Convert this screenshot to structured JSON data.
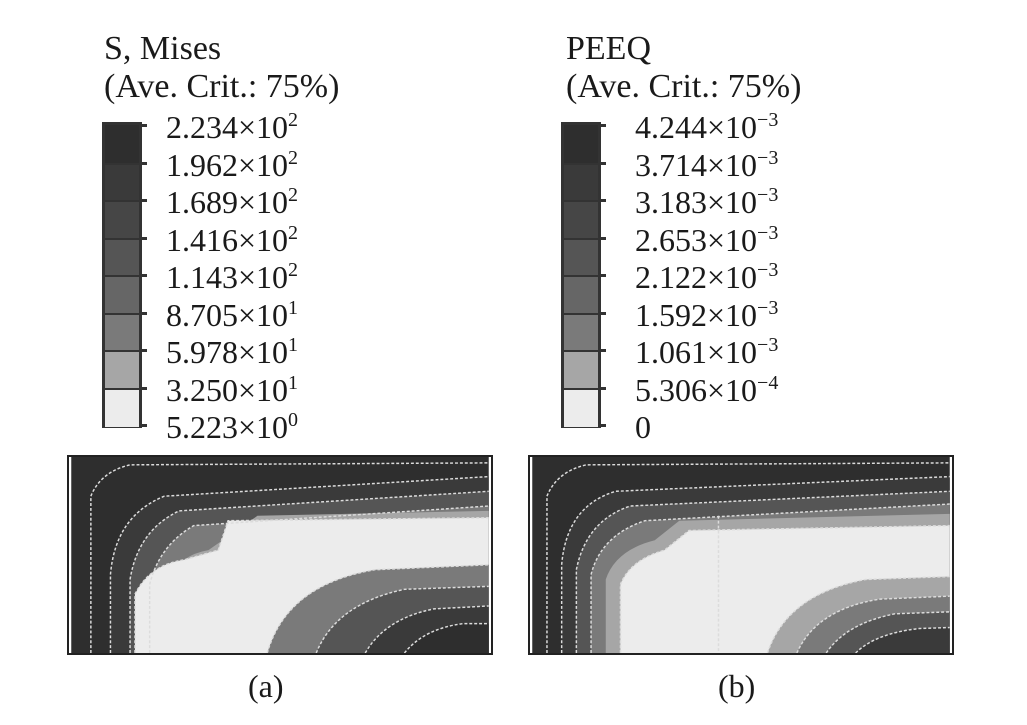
{
  "panels": [
    {
      "title": "S, Mises",
      "criterion": "(Ave. Crit.: 75%)",
      "legend": [
        {
          "mantissa": "2.234",
          "exponent": "2"
        },
        {
          "mantissa": "1.962",
          "exponent": "2"
        },
        {
          "mantissa": "1.689",
          "exponent": "2"
        },
        {
          "mantissa": "1.416",
          "exponent": "2"
        },
        {
          "mantissa": "1.143",
          "exponent": "2"
        },
        {
          "mantissa": "8.705",
          "exponent": "1"
        },
        {
          "mantissa": "5.978",
          "exponent": "1"
        },
        {
          "mantissa": "3.250",
          "exponent": "1"
        },
        {
          "mantissa": "5.223",
          "exponent": "0"
        }
      ],
      "caption": "(a)"
    },
    {
      "title": "PEEQ",
      "criterion": "(Ave. Crit.: 75%)",
      "legend": [
        {
          "mantissa": "4.244",
          "exponent": "−3"
        },
        {
          "mantissa": "3.714",
          "exponent": "−3"
        },
        {
          "mantissa": "3.183",
          "exponent": "−3"
        },
        {
          "mantissa": "2.653",
          "exponent": "−3"
        },
        {
          "mantissa": "2.122",
          "exponent": "−3"
        },
        {
          "mantissa": "1.592",
          "exponent": "−3"
        },
        {
          "mantissa": "1.061",
          "exponent": "−3"
        },
        {
          "mantissa": "5.306",
          "exponent": "−4"
        },
        {
          "mantissa": "0",
          "exponent": ""
        }
      ],
      "caption": "(b)"
    }
  ],
  "times_sign": "×",
  "band_colors": [
    "#2e2e2e",
    "#3a3a3a",
    "#464646",
    "#555555",
    "#666666",
    "#7a7a7a",
    "#a6a6a6",
    "#ececec"
  ]
}
